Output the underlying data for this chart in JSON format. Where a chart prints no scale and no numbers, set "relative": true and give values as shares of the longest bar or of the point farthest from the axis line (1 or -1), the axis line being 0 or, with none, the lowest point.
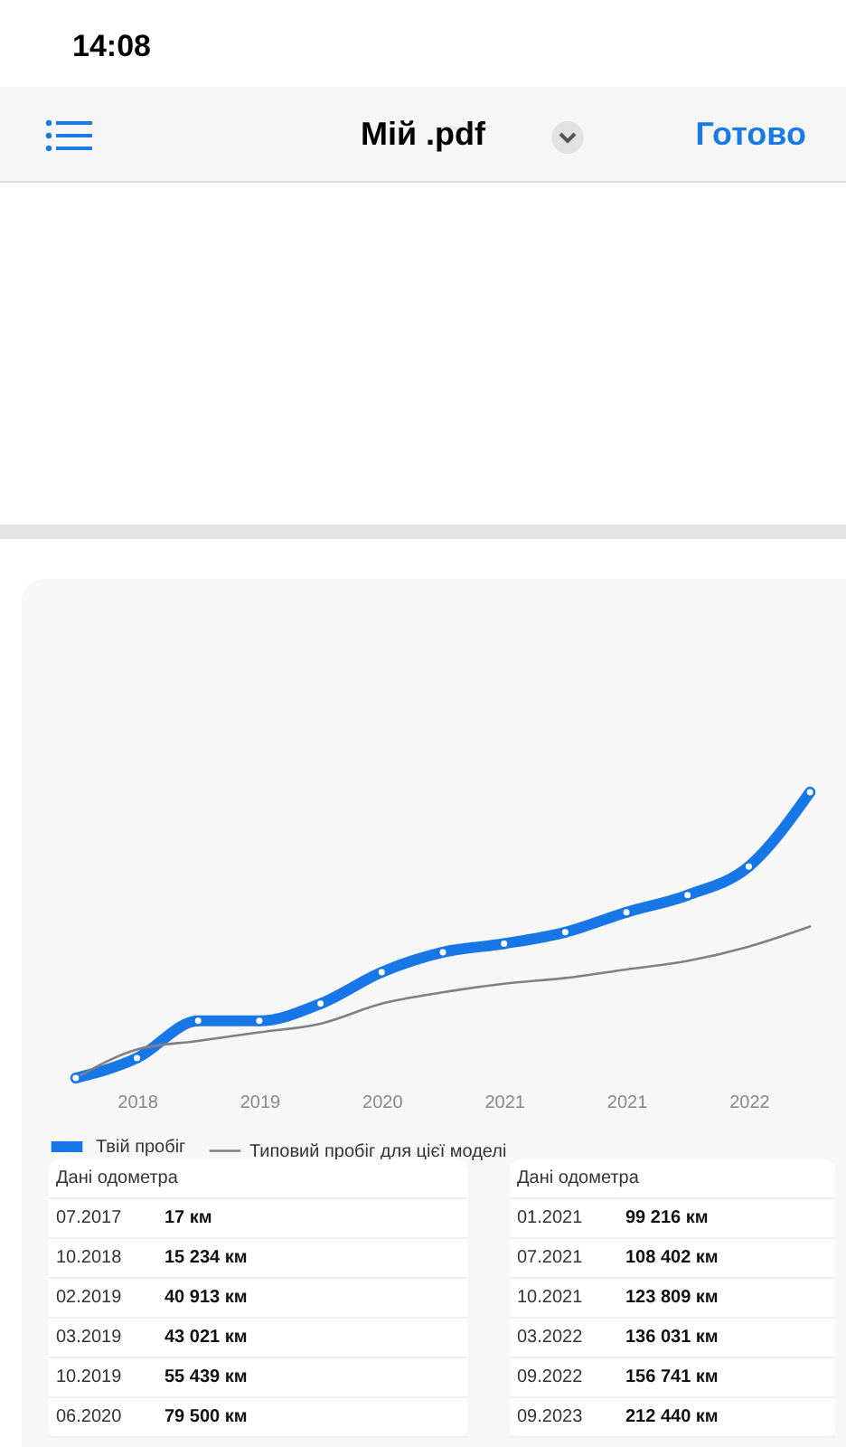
{
  "chart_data": {
    "type": "line",
    "relative": true,
    "categories": [
      null,
      "2018",
      null,
      "2019",
      null,
      "2020",
      null,
      "2021",
      null,
      "2021",
      null,
      "2022",
      null
    ],
    "series": [
      {
        "name": "Твій пробіг",
        "color": "#1877e6",
        "marker": "circle",
        "values": [
          0,
          0.07,
          0.2,
          0.2,
          0.26,
          0.37,
          0.44,
          0.47,
          0.51,
          0.58,
          0.64,
          0.74,
          1
        ]
      },
      {
        "name": "Типовий пробіг для цієї моделі",
        "color": "#808080",
        "values": [
          0,
          0.1,
          0.13,
          0.16,
          0.19,
          0.26,
          0.3,
          0.33,
          0.35,
          0.38,
          0.41,
          0.46,
          0.53
        ]
      }
    ],
    "legend": "bottom",
    "grid": false,
    "line_style": "solid",
    "annotations": [
      "14:08",
      "Мій .pdf",
      "Готово",
      "Дані одометра",
      "07.2017",
      "17 км",
      "10.2018",
      "15 234 км",
      "02.2019",
      "40 913 км",
      "03.2019",
      "43 021 км",
      "10.2019",
      "55 439 км",
      "06.2020",
      "79 500 км",
      "Дані одометра",
      "01.2021",
      "99 216 км",
      "07.2021",
      "108 402 км",
      "10.2021",
      "123 809 км",
      "03.2022",
      "136 031 км",
      "09.2022",
      "156 741 км",
      "09.2023",
      "212 440 км"
    ]
  }
}
